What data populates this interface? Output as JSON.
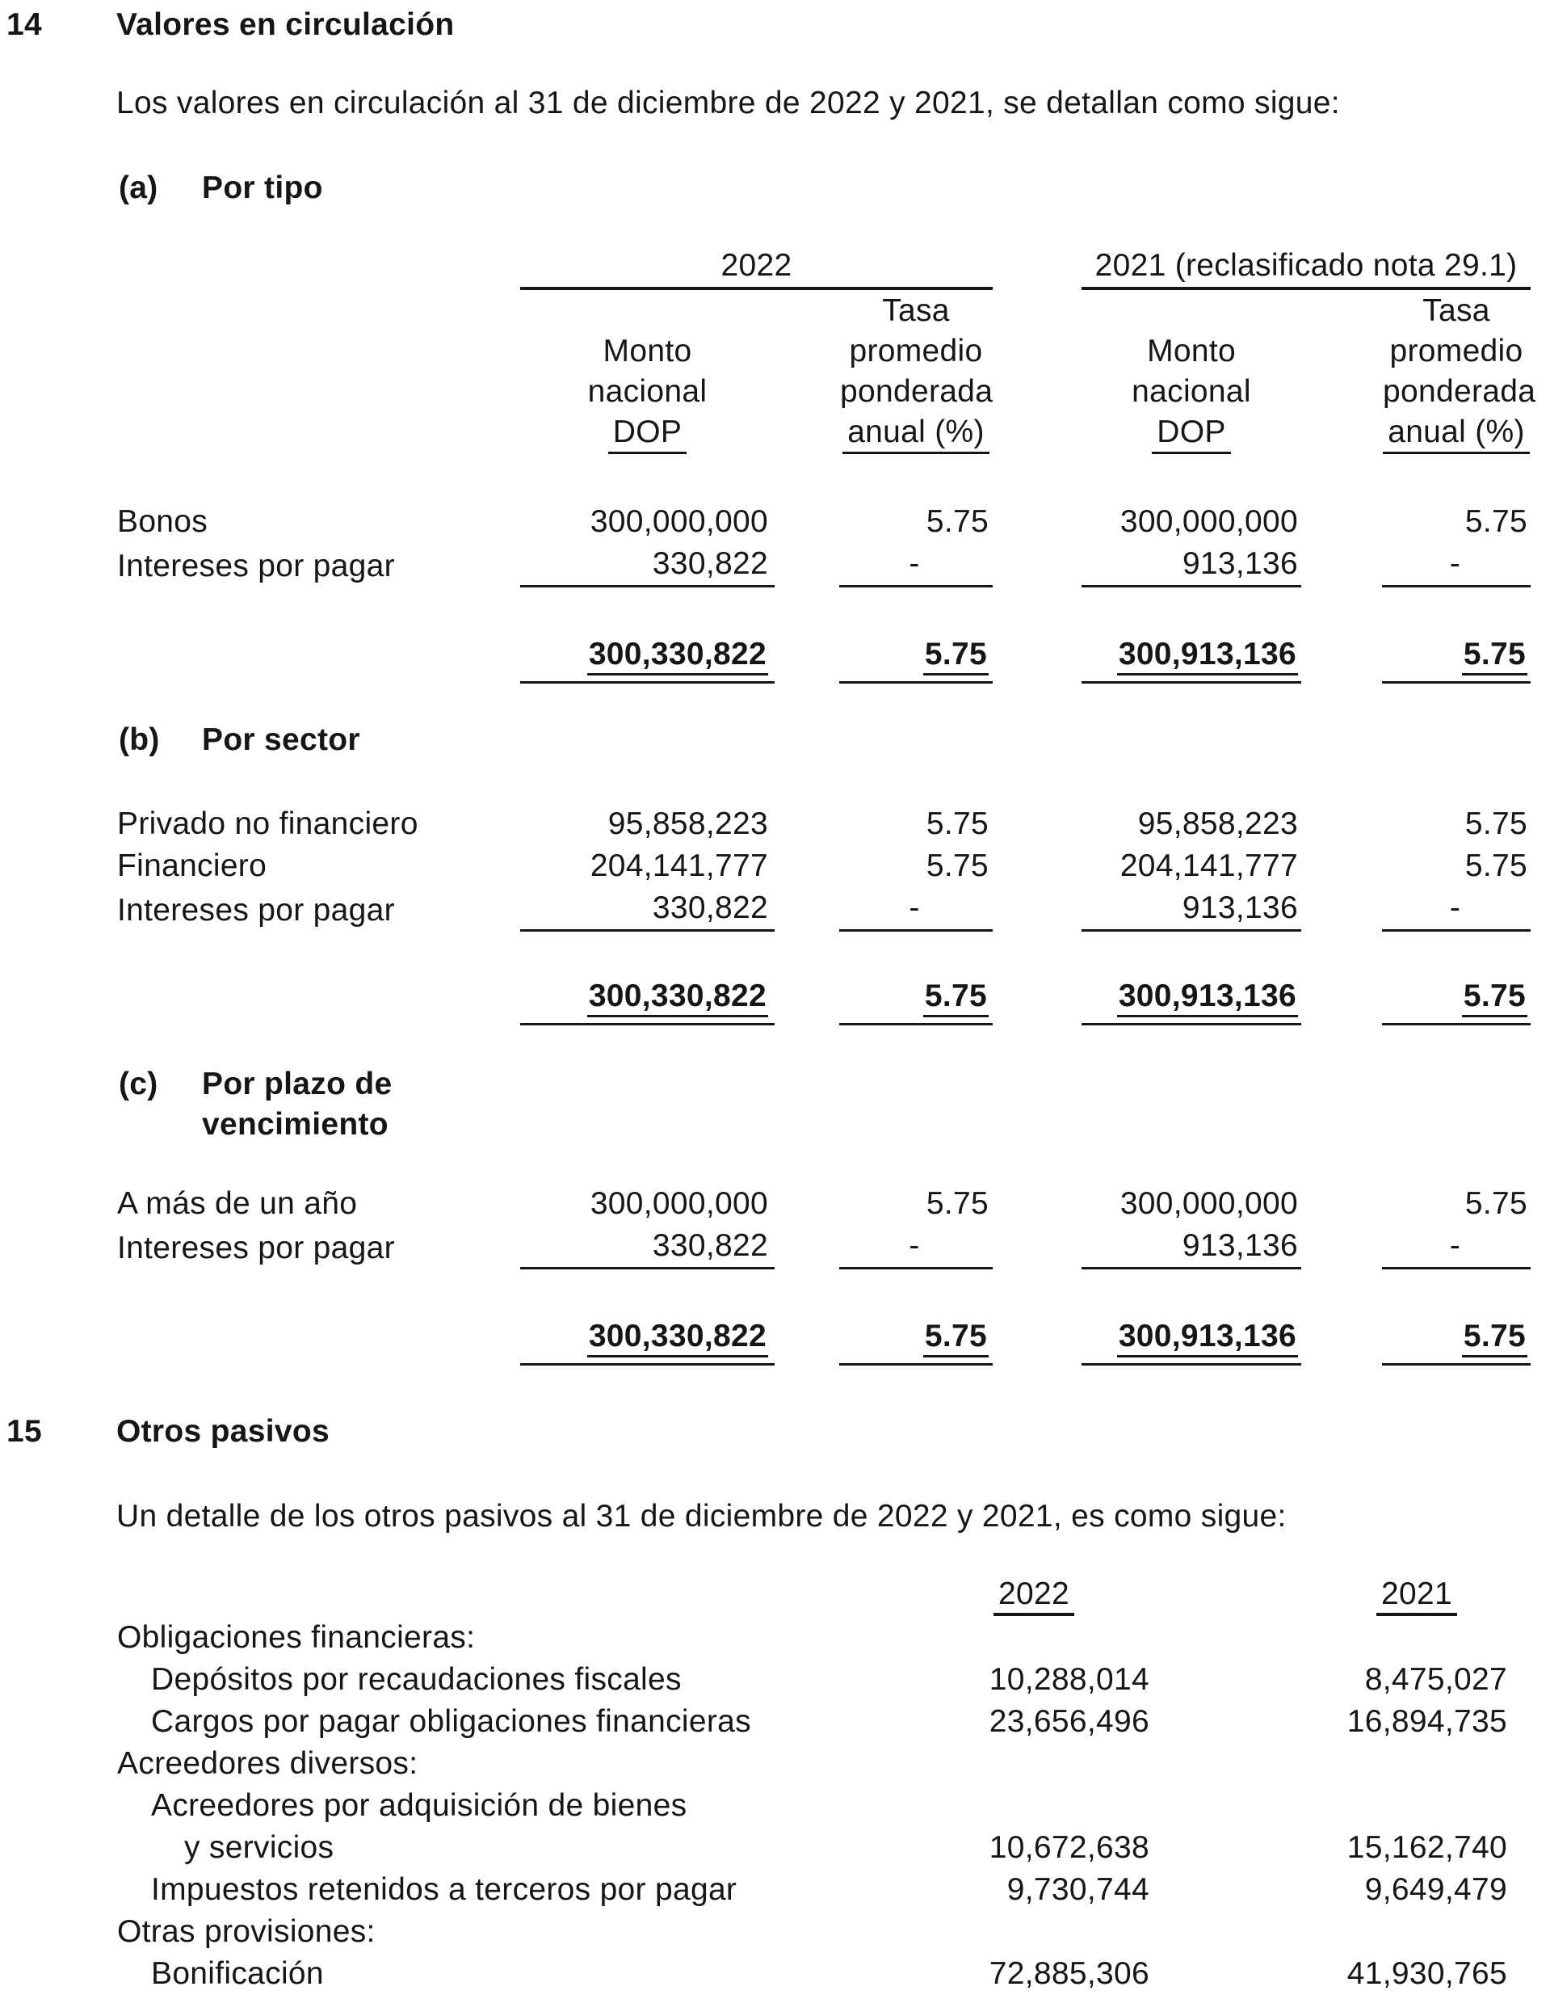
{
  "page": {
    "section14": {
      "number": "14",
      "title": "Valores en circulación",
      "intro": "Los valores en circulación al 31 de diciembre de 2022 y 2021, se detallan como sigue:",
      "columns": {
        "group2022": "2022",
        "group2021": "2021 (reclasificado nota 29.1)",
        "monto": [
          "Monto",
          "nacional",
          "DOP"
        ],
        "tasa": [
          "Tasa",
          "promedio",
          "ponderada",
          "anual (%)"
        ]
      },
      "a": {
        "marker": "(a)",
        "title": "Por tipo",
        "rows": [
          {
            "label": "Bonos",
            "m22": "300,000,000",
            "t22": "5.75",
            "m21": "300,000,000",
            "t21": "5.75"
          },
          {
            "label": "Intereses por pagar",
            "m22": "330,822",
            "t22": "-",
            "m21": "913,136",
            "t21": "-"
          }
        ],
        "total": {
          "m22": "300,330,822",
          "t22": "5.75",
          "m21": "300,913,136",
          "t21": "5.75"
        }
      },
      "b": {
        "marker": "(b)",
        "title": "Por sector",
        "rows": [
          {
            "label": "Privado no financiero",
            "m22": "95,858,223",
            "t22": "5.75",
            "m21": "95,858,223",
            "t21": "5.75"
          },
          {
            "label": "Financiero",
            "m22": "204,141,777",
            "t22": "5.75",
            "m21": "204,141,777",
            "t21": "5.75"
          },
          {
            "label": "Intereses por pagar",
            "m22": "330,822",
            "t22": "-",
            "m21": "913,136",
            "t21": "-"
          }
        ],
        "total": {
          "m22": "300,330,822",
          "t22": "5.75",
          "m21": "300,913,136",
          "t21": "5.75"
        }
      },
      "c": {
        "marker": "(c)",
        "title_line1": "Por plazo de",
        "title_line2": "vencimiento",
        "rows": [
          {
            "label": "A más de un año",
            "m22": "300,000,000",
            "t22": "5.75",
            "m21": "300,000,000",
            "t21": "5.75"
          },
          {
            "label": "Intereses por pagar",
            "m22": "330,822",
            "t22": "-",
            "m21": "913,136",
            "t21": "-"
          }
        ],
        "total": {
          "m22": "300,330,822",
          "t22": "5.75",
          "m21": "300,913,136",
          "t21": "5.75"
        }
      }
    },
    "section15": {
      "number": "15",
      "title": "Otros pasivos",
      "intro": "Un detalle de los otros pasivos al 31 de diciembre de 2022 y 2021, es como sigue:",
      "col2022": "2022",
      "col2021": "2021",
      "rows": [
        {
          "label": "Obligaciones financieras:",
          "v2022": "",
          "v2021": ""
        },
        {
          "label": "Depósitos por recaudaciones fiscales",
          "v2022": "10,288,014",
          "v2021": "8,475,027"
        },
        {
          "label": "Cargos por pagar obligaciones financieras",
          "v2022": "23,656,496",
          "v2021": "16,894,735"
        },
        {
          "label": "Acreedores diversos:",
          "v2022": "",
          "v2021": ""
        },
        {
          "label": "Acreedores por adquisición de bienes",
          "v2022": "",
          "v2021": ""
        },
        {
          "label": "y servicios",
          "v2022": "10,672,638",
          "v2021": "15,162,740"
        },
        {
          "label": "Impuestos retenidos a terceros por pagar",
          "v2022": "9,730,744",
          "v2021": "9,649,479"
        },
        {
          "label": "Otras provisiones:",
          "v2022": "",
          "v2021": ""
        },
        {
          "label": "Bonificación",
          "v2022": "72,885,306",
          "v2021": "41,930,765"
        }
      ]
    }
  }
}
